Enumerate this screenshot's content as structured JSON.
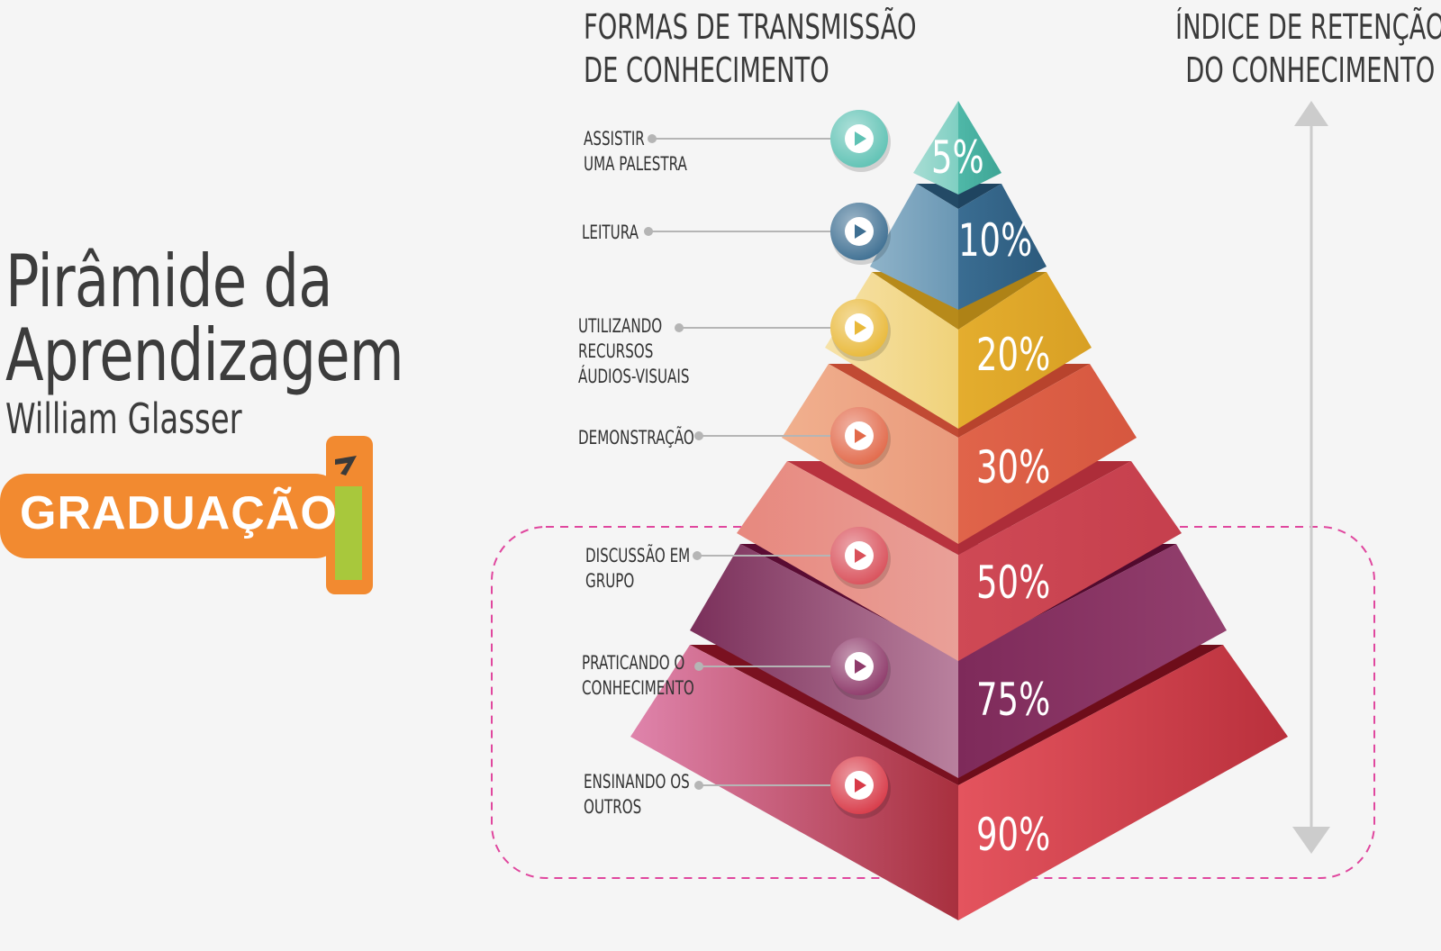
{
  "title": {
    "line1": "Pirâmide da",
    "line2": "Aprendizagem",
    "author": "William Glasser"
  },
  "logo": {
    "text": "GRADUAÇÃO"
  },
  "headers": {
    "left_line1": "FORMAS DE TRANSMISSÃO",
    "left_line2": "DE CONHECIMENTO",
    "right_line1": "ÍNDICE DE RETENÇÃO",
    "right_line2": "DO CONHECIMENTO"
  },
  "levels": [
    {
      "lines": [
        "ASSISTIR",
        "UMA PALESTRA"
      ],
      "percent": "5%",
      "color": "#5fc2b4"
    },
    {
      "lines": [
        "LEITURA"
      ],
      "percent": "10%",
      "color": "#3e6f92"
    },
    {
      "lines": [
        "UTILIZANDO",
        "RECURSOS",
        "ÁUDIOS-VISUAIS"
      ],
      "percent": "20%",
      "color": "#e9b93a"
    },
    {
      "lines": [
        "DEMONSTRAÇÃO"
      ],
      "percent": "30%",
      "color": "#e2694a"
    },
    {
      "lines": [
        "DISCUSSÃO EM",
        "GRUPO"
      ],
      "percent": "50%",
      "color": "#d9505a"
    },
    {
      "lines": [
        "PRATICANDO O",
        "CONHECIMENTO"
      ],
      "percent": "75%",
      "color": "#8e3a6a"
    },
    {
      "lines": [
        "ENSINANDO OS",
        "OUTROS"
      ],
      "percent": "90%",
      "color": "#d83a48"
    }
  ],
  "colors": {
    "logo_orange": "#f28a30",
    "logo_green": "#a8c83c",
    "highlight_border": "#e0479e",
    "arrow": "#cccccc"
  }
}
